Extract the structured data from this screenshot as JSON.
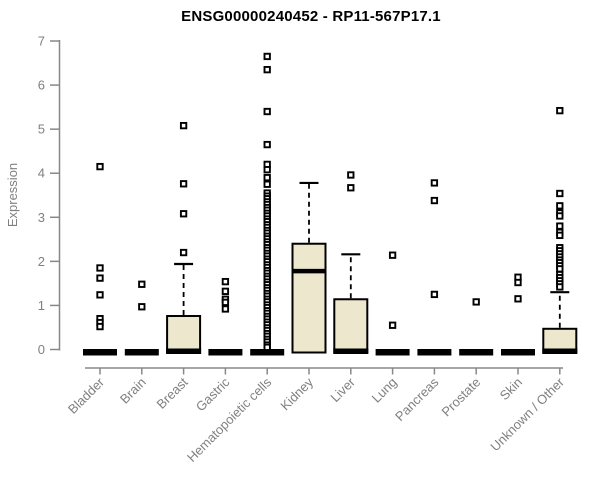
{
  "chart_data": {
    "type": "boxplot",
    "title": "ENSG00000240452 - RP11-567P17.1",
    "ylabel": "Expression",
    "xlabel": "",
    "ylim": [
      0,
      7
    ],
    "yticks": [
      0,
      1,
      2,
      3,
      4,
      5,
      6,
      7
    ],
    "grid": false,
    "legend": "none",
    "box_fill_color": "#EDE7CD",
    "box_line_color": "#000000",
    "axis_color": "#888888",
    "tick_label_color": "#808080",
    "categories": [
      "Bladder",
      "Brain",
      "Breast",
      "Gastric",
      "Hematopoietic cells",
      "Kidney",
      "Liver",
      "Lung",
      "Pancreas",
      "Prostate",
      "Skin",
      "Unknown / Other"
    ],
    "series": [
      {
        "name": "Bladder",
        "q1": 0,
        "median": 0,
        "q3": 0,
        "whisker_low": 0,
        "whisker_high": 0,
        "outliers": [
          4.15,
          1.85,
          1.62,
          1.24,
          0.7,
          0.61,
          0.52
        ]
      },
      {
        "name": "Brain",
        "q1": 0,
        "median": 0,
        "q3": 0,
        "whisker_low": 0,
        "whisker_high": 0,
        "outliers": [
          1.48,
          0.97
        ]
      },
      {
        "name": "Breast",
        "q1": 0,
        "median": 0,
        "q3": 0.76,
        "whisker_low": 0,
        "whisker_high": 1.94,
        "outliers": [
          5.08,
          3.76,
          3.08,
          2.2
        ]
      },
      {
        "name": "Gastric",
        "q1": 0,
        "median": 0,
        "q3": 0,
        "whisker_low": 0,
        "whisker_high": 0,
        "outliers": [
          1.54,
          1.32,
          1.14,
          1.07,
          0.92
        ]
      },
      {
        "name": "Hematopoietic cells",
        "q1": 0,
        "median": 0,
        "q3": 0,
        "whisker_low": 0,
        "whisker_high": 0,
        "outliers": [
          6.65,
          6.35,
          5.4,
          4.65,
          4.2,
          4.08,
          3.9,
          3.75,
          3.55,
          3.48,
          3.42,
          3.35,
          3.29,
          3.22,
          3.16,
          3.09,
          3.03,
          2.96,
          2.9,
          2.83,
          2.77,
          2.7,
          2.64,
          2.57,
          2.51,
          2.44,
          2.38,
          2.31,
          2.25,
          2.18,
          2.12,
          2.05,
          1.99,
          1.92,
          1.86,
          1.79,
          1.73,
          1.66,
          1.6,
          1.53,
          1.47,
          1.4,
          1.34,
          1.27,
          1.21,
          1.14,
          1.08,
          1.01,
          0.95,
          0.88,
          0.82,
          0.75,
          0.69,
          0.62,
          0.56,
          0.49,
          0.43,
          0.36,
          0.3,
          0.23,
          0.17,
          0.1,
          0.05
        ]
      },
      {
        "name": "Kidney",
        "q1": 0,
        "median": 1.78,
        "q3": 2.4,
        "whisker_low": 0,
        "whisker_high": 3.78,
        "outliers": []
      },
      {
        "name": "Liver",
        "q1": 0,
        "median": 0,
        "q3": 1.14,
        "whisker_low": 0,
        "whisker_high": 2.16,
        "outliers": [
          3.96,
          3.67
        ]
      },
      {
        "name": "Lung",
        "q1": 0,
        "median": 0,
        "q3": 0,
        "whisker_low": 0,
        "whisker_high": 0,
        "outliers": [
          2.14,
          0.55
        ]
      },
      {
        "name": "Pancreas",
        "q1": 0,
        "median": 0,
        "q3": 0,
        "whisker_low": 0,
        "whisker_high": 0,
        "outliers": [
          3.78,
          3.38,
          1.25
        ]
      },
      {
        "name": "Prostate",
        "q1": 0,
        "median": 0,
        "q3": 0,
        "whisker_low": 0,
        "whisker_high": 0,
        "outliers": [
          1.08
        ]
      },
      {
        "name": "Skin",
        "q1": 0,
        "median": 0,
        "q3": 0,
        "whisker_low": 0,
        "whisker_high": 0,
        "outliers": [
          1.64,
          1.52,
          1.15
        ]
      },
      {
        "name": "Unknown / Other",
        "q1": 0,
        "median": 0,
        "q3": 0.47,
        "whisker_low": 0,
        "whisker_high": 1.3,
        "outliers": [
          5.42,
          3.54,
          3.26,
          3.1,
          3.03,
          2.8,
          2.66,
          2.59,
          2.31,
          2.24,
          2.17,
          2.1,
          2.03,
          1.97,
          1.9,
          1.83,
          1.7,
          1.63,
          1.56,
          1.49,
          1.42
        ]
      }
    ]
  }
}
